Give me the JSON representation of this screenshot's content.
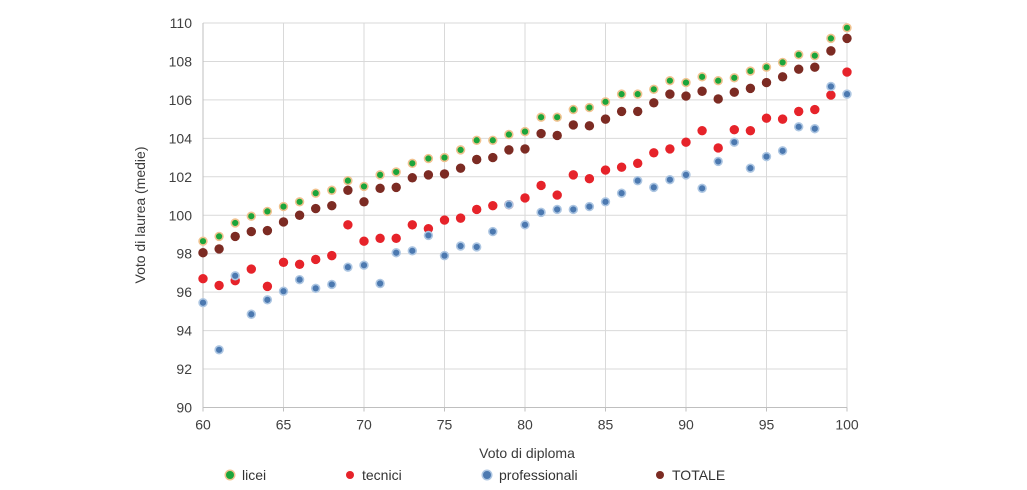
{
  "chart_data": {
    "type": "scatter",
    "title": "",
    "xlabel": "Voto di diploma",
    "ylabel": "Voto di laurea (medie)",
    "xlim": [
      60,
      100
    ],
    "ylim": [
      90,
      110
    ],
    "x_tick_labels": [
      "60",
      "65",
      "70",
      "75",
      "80",
      "85",
      "90",
      "95",
      "100"
    ],
    "x_tick_values": [
      60,
      65,
      70,
      75,
      80,
      85,
      90,
      95,
      100
    ],
    "y_tick_labels": [
      "90",
      "92",
      "94",
      "96",
      "98",
      "100",
      "102",
      "104",
      "106",
      "108",
      "110"
    ],
    "y_tick_values": [
      90,
      92,
      94,
      96,
      98,
      100,
      102,
      104,
      106,
      108,
      110
    ],
    "grid": true,
    "legend_position": "bottom",
    "x": [
      60,
      61,
      62,
      63,
      64,
      65,
      66,
      67,
      68,
      69,
      70,
      71,
      72,
      73,
      74,
      75,
      76,
      77,
      78,
      79,
      80,
      81,
      82,
      83,
      84,
      85,
      86,
      87,
      88,
      89,
      90,
      91,
      92,
      93,
      94,
      95,
      96,
      97,
      98,
      99,
      100
    ],
    "series": [
      {
        "name": "licei",
        "color": "#1ca53b",
        "ring": "#f0c28f",
        "values": [
          98.65,
          98.9,
          99.6,
          99.95,
          100.2,
          100.45,
          100.7,
          101.15,
          101.3,
          101.8,
          101.5,
          102.1,
          102.25,
          102.7,
          102.95,
          103.0,
          103.4,
          103.9,
          103.9,
          104.2,
          104.35,
          105.1,
          105.1,
          105.5,
          105.6,
          105.9,
          106.3,
          106.3,
          106.55,
          107.0,
          106.9,
          107.2,
          107.0,
          107.15,
          107.5,
          107.7,
          107.95,
          108.35,
          108.3,
          109.2,
          109.75
        ]
      },
      {
        "name": "tecnici",
        "color": "#e6232a",
        "ring": "#e6232a",
        "values": [
          96.7,
          96.35,
          96.6,
          97.2,
          96.3,
          97.55,
          97.45,
          97.7,
          97.9,
          99.5,
          98.65,
          98.8,
          98.8,
          99.5,
          99.3,
          99.75,
          99.85,
          100.3,
          100.5,
          100.55,
          100.9,
          101.55,
          101.05,
          102.1,
          101.9,
          102.35,
          102.5,
          102.7,
          103.25,
          103.45,
          103.8,
          104.4,
          103.5,
          104.45,
          104.4,
          105.05,
          105.0,
          105.4,
          105.5,
          106.25,
          107.45
        ]
      },
      {
        "name": "professionali",
        "color": "#4c79b0",
        "ring": "#adc6e2",
        "values": [
          95.45,
          93.0,
          96.85,
          94.85,
          95.6,
          96.05,
          96.65,
          96.2,
          96.4,
          97.3,
          97.4,
          96.45,
          98.05,
          98.15,
          98.95,
          97.9,
          98.4,
          98.35,
          99.15,
          100.55,
          99.5,
          100.15,
          100.3,
          100.3,
          100.45,
          100.7,
          101.15,
          101.8,
          101.45,
          101.85,
          102.1,
          101.4,
          102.8,
          103.8,
          102.45,
          103.05,
          103.35,
          104.6,
          104.5,
          106.7,
          106.3
        ]
      },
      {
        "name": "TOTALE",
        "color": "#7c2b23",
        "ring": "#7c2b23",
        "values": [
          98.05,
          98.25,
          98.9,
          99.15,
          99.2,
          99.65,
          100.0,
          100.35,
          100.5,
          101.3,
          100.7,
          101.4,
          101.45,
          101.95,
          102.1,
          102.15,
          102.45,
          102.9,
          103.0,
          103.4,
          103.45,
          104.25,
          104.15,
          104.7,
          104.65,
          105.0,
          105.4,
          105.4,
          105.85,
          106.3,
          106.2,
          106.45,
          106.05,
          106.4,
          106.6,
          106.9,
          107.2,
          107.6,
          107.7,
          108.55,
          109.2
        ]
      }
    ],
    "style": {
      "grid_color": "#d9d9d9",
      "axis_color": "#bfbfbf",
      "tick_text_color": "#404040",
      "background": "#ffffff"
    }
  }
}
